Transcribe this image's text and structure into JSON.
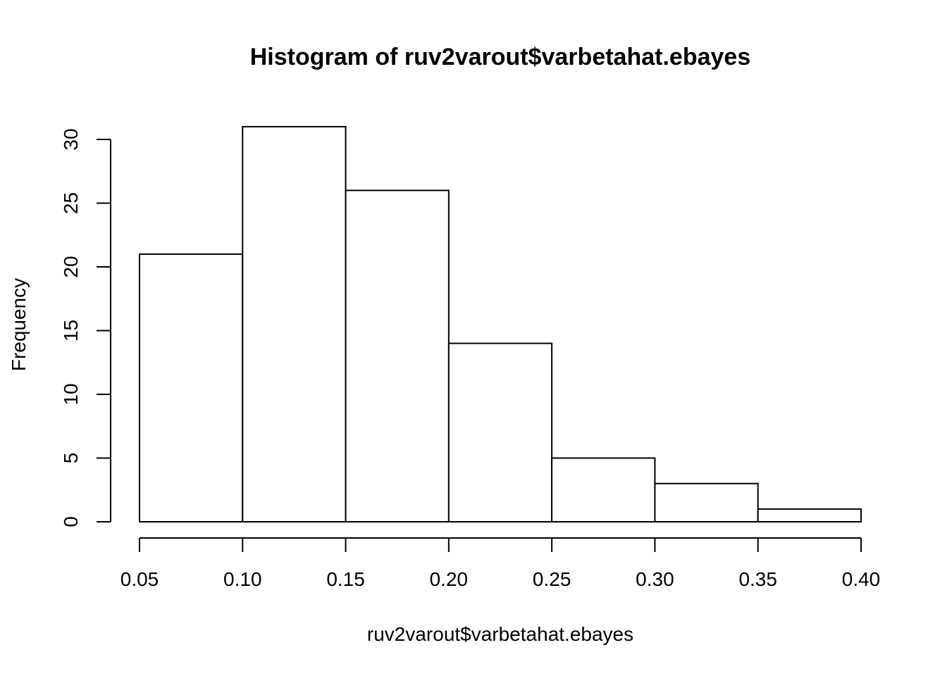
{
  "chart_data": {
    "type": "bar",
    "title": "Histogram of ruv2varout$varbetahat.ebayes",
    "xlabel": "ruv2varout$varbetahat.ebayes",
    "ylabel": "Frequency",
    "bins": [
      {
        "from": 0.05,
        "to": 0.1,
        "count": 21
      },
      {
        "from": 0.1,
        "to": 0.15,
        "count": 31
      },
      {
        "from": 0.15,
        "to": 0.2,
        "count": 26
      },
      {
        "from": 0.2,
        "to": 0.25,
        "count": 14
      },
      {
        "from": 0.25,
        "to": 0.3,
        "count": 5
      },
      {
        "from": 0.3,
        "to": 0.35,
        "count": 3
      },
      {
        "from": 0.35,
        "to": 0.4,
        "count": 1
      }
    ],
    "xlim": [
      0.05,
      0.4
    ],
    "ylim": [
      0,
      30
    ],
    "x_ticks": [
      "0.05",
      "0.10",
      "0.15",
      "0.20",
      "0.25",
      "0.30",
      "0.35",
      "0.40"
    ],
    "y_ticks": [
      "0",
      "5",
      "10",
      "15",
      "20",
      "25",
      "30"
    ],
    "grid": false,
    "bar_fill": "#ffffff",
    "bar_stroke": "#000000"
  }
}
